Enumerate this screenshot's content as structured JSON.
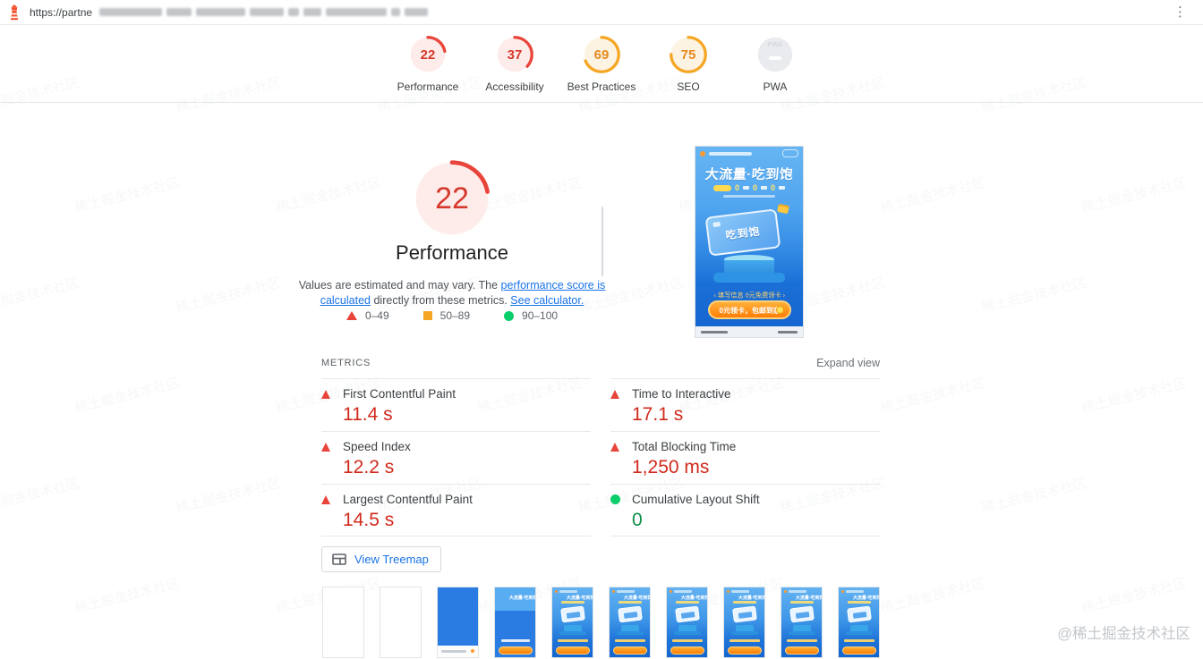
{
  "url_bar": {
    "url_prefix": "https://partne"
  },
  "categories": [
    {
      "label": "Performance",
      "score": 22,
      "rating": "fail"
    },
    {
      "label": "Accessibility",
      "score": 37,
      "rating": "fail"
    },
    {
      "label": "Best Practices",
      "score": 69,
      "rating": "average"
    },
    {
      "label": "SEO",
      "score": 75,
      "rating": "average"
    },
    {
      "label": "PWA",
      "score": null,
      "rating": "not-applicable"
    }
  ],
  "summary": {
    "score": 22,
    "title": "Performance",
    "description": {
      "text_1": "Values are estimated and may vary. The ",
      "link_1": "performance score is calculated",
      "text_2": " directly from these metrics. ",
      "link_2": "See calculator."
    },
    "legend": [
      {
        "shape": "triangle",
        "range": "0–49"
      },
      {
        "shape": "square",
        "range": "50–89"
      },
      {
        "shape": "circle",
        "range": "90–100"
      }
    ]
  },
  "metrics": {
    "section_title": "METRICS",
    "expand_label": "Expand view",
    "items": [
      {
        "label": "First Contentful Paint",
        "value": "11.4 s",
        "rating": "fail"
      },
      {
        "label": "Time to Interactive",
        "value": "17.1 s",
        "rating": "fail"
      },
      {
        "label": "Speed Index",
        "value": "12.2 s",
        "rating": "fail"
      },
      {
        "label": "Total Blocking Time",
        "value": "1,250 ms",
        "rating": "fail"
      },
      {
        "label": "Largest Contentful Paint",
        "value": "14.5 s",
        "rating": "fail"
      },
      {
        "label": "Cumulative Layout Shift",
        "value": "0",
        "rating": "pass"
      }
    ]
  },
  "treemap": {
    "label": "View Treemap"
  },
  "screenshot_preview": {
    "title": "大流量·吃到饱",
    "zero_row": [
      "0",
      "0",
      "0"
    ],
    "card_label": "吃到饱",
    "cta_note": "‹ 填写信息 0元免费领卡 ›",
    "button_label": "0元领卡，包邮到家"
  },
  "filmstrip": {
    "frames": [
      "blank",
      "blank",
      "blue",
      "partial",
      "full",
      "full",
      "full",
      "full",
      "full",
      "full"
    ]
  },
  "watermarks": {
    "corner": "@稀土掘金技术社区",
    "diagonal": "稀土掘金技术社区"
  },
  "colors": {
    "fail": "#e8443a",
    "average": "#f5a623",
    "pass": "#0cce6b",
    "fail_value": "#d0291c",
    "pass_value": "#0f8f47",
    "link": "#1a73e8",
    "fail_bg": "#fdecea",
    "average_bg": "#fdf3e3",
    "na_bg": "#e9ebee"
  }
}
